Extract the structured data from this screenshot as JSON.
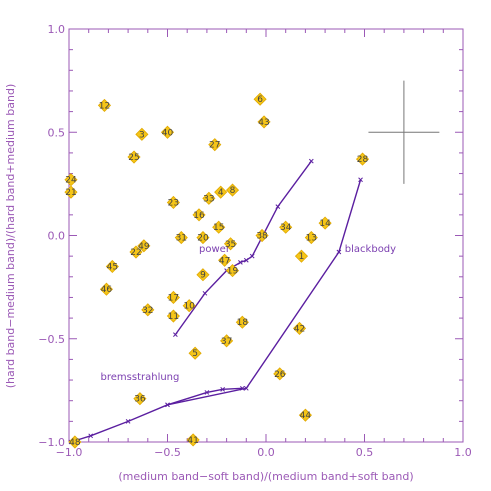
{
  "chart_data": {
    "type": "scatter",
    "title": "",
    "xlabel": "(medium band−soft band)/(medium band+soft band)",
    "ylabel": "(hard band−medium band)/(hard band+medium band)",
    "xlim": [
      -1.0,
      1.0
    ],
    "ylim": [
      -1.0,
      1.0
    ],
    "xticks": [
      "−1.0",
      "−0.5",
      "0.0",
      "0.5",
      "1.0"
    ],
    "yticks": [
      "−1.0",
      "−0.5",
      "0.0",
      "0.5",
      "1.0"
    ],
    "grid": false,
    "colors": {
      "axis": "#9b59b6",
      "marker": "#f5c518",
      "marker_edge": "#e0a800",
      "model": "#5b1fa0",
      "error_bar": "#777777"
    },
    "points": [
      {
        "id": "1",
        "x": 0.18,
        "y": -0.1
      },
      {
        "id": "3",
        "x": -0.63,
        "y": 0.49
      },
      {
        "id": "4",
        "x": -0.23,
        "y": 0.21
      },
      {
        "id": "5",
        "x": -0.36,
        "y": -0.57
      },
      {
        "id": "6",
        "x": -0.03,
        "y": 0.66
      },
      {
        "id": "8",
        "x": -0.17,
        "y": 0.22
      },
      {
        "id": "9",
        "x": -0.32,
        "y": -0.19
      },
      {
        "id": "10",
        "x": -0.39,
        "y": -0.34
      },
      {
        "id": "11",
        "x": -0.47,
        "y": -0.39
      },
      {
        "id": "12",
        "x": -0.82,
        "y": 0.63
      },
      {
        "id": "13",
        "x": 0.23,
        "y": -0.01
      },
      {
        "id": "14",
        "x": 0.3,
        "y": 0.06
      },
      {
        "id": "15",
        "x": -0.24,
        "y": 0.04
      },
      {
        "id": "16",
        "x": -0.34,
        "y": 0.1
      },
      {
        "id": "17",
        "x": -0.47,
        "y": -0.3
      },
      {
        "id": "18",
        "x": -0.12,
        "y": -0.42
      },
      {
        "id": "19",
        "x": -0.17,
        "y": -0.17
      },
      {
        "id": "20",
        "x": -0.32,
        "y": -0.01
      },
      {
        "id": "21",
        "x": -0.99,
        "y": 0.21
      },
      {
        "id": "22",
        "x": -0.66,
        "y": -0.08
      },
      {
        "id": "23",
        "x": -0.47,
        "y": 0.16
      },
      {
        "id": "24",
        "x": -0.99,
        "y": 0.27
      },
      {
        "id": "25",
        "x": -0.67,
        "y": 0.38
      },
      {
        "id": "26",
        "x": 0.07,
        "y": -0.67
      },
      {
        "id": "27",
        "x": -0.26,
        "y": 0.44
      },
      {
        "id": "28",
        "x": 0.49,
        "y": 0.37
      },
      {
        "id": "31",
        "x": -0.43,
        "y": -0.01
      },
      {
        "id": "32",
        "x": -0.6,
        "y": -0.36
      },
      {
        "id": "33",
        "x": -0.29,
        "y": 0.18
      },
      {
        "id": "34",
        "x": 0.1,
        "y": 0.04
      },
      {
        "id": "35",
        "x": -0.18,
        "y": -0.04
      },
      {
        "id": "36",
        "x": -0.64,
        "y": -0.79
      },
      {
        "id": "37",
        "x": -0.2,
        "y": -0.51
      },
      {
        "id": "38",
        "x": -0.02,
        "y": 0.0
      },
      {
        "id": "40",
        "x": -0.5,
        "y": 0.5
      },
      {
        "id": "41",
        "x": -0.37,
        "y": -0.99
      },
      {
        "id": "42",
        "x": 0.17,
        "y": -0.45
      },
      {
        "id": "43",
        "x": -0.01,
        "y": 0.55
      },
      {
        "id": "44",
        "x": 0.2,
        "y": -0.87
      },
      {
        "id": "45",
        "x": -0.78,
        "y": -0.15
      },
      {
        "id": "46",
        "x": -0.81,
        "y": -0.26
      },
      {
        "id": "47",
        "x": -0.21,
        "y": -0.12
      },
      {
        "id": "48",
        "x": -0.97,
        "y": -1.0
      },
      {
        "id": "49",
        "x": -0.62,
        "y": -0.05
      }
    ],
    "model_tracks": [
      {
        "name": "power",
        "label_anchor": [
          -0.34,
          -0.08
        ],
        "x": [
          -0.46,
          -0.31,
          -0.2,
          -0.13,
          -0.1,
          -0.07,
          0.06,
          0.23
        ],
        "y": [
          -0.48,
          -0.28,
          -0.17,
          -0.13,
          -0.12,
          -0.1,
          0.14,
          0.36
        ]
      },
      {
        "name": "blackbody",
        "label_anchor": [
          0.4,
          -0.08
        ],
        "x": [
          -0.5,
          -0.1,
          0.37,
          0.48
        ],
        "y": [
          -0.82,
          -0.74,
          -0.08,
          0.27
        ]
      },
      {
        "name": "bremsstrahlung",
        "label_anchor": [
          -0.84,
          -0.7
        ],
        "x": [
          -0.99,
          -0.89,
          -0.7,
          -0.5,
          -0.3,
          -0.22,
          -0.12
        ],
        "y": [
          -1.0,
          -0.97,
          -0.9,
          -0.82,
          -0.76,
          -0.745,
          -0.74
        ]
      }
    ],
    "error_bar": {
      "x": 0.7,
      "y": 0.5,
      "xerr": 0.18,
      "yerr": 0.25
    }
  }
}
